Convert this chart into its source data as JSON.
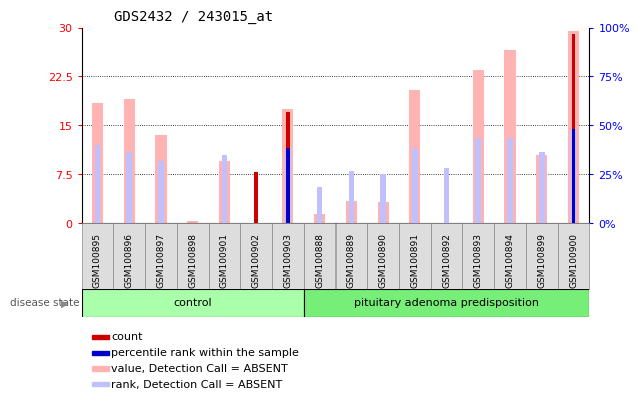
{
  "title": "GDS2432 / 243015_at",
  "samples": [
    "GSM100895",
    "GSM100896",
    "GSM100897",
    "GSM100898",
    "GSM100901",
    "GSM100902",
    "GSM100903",
    "GSM100888",
    "GSM100889",
    "GSM100890",
    "GSM100891",
    "GSM100892",
    "GSM100893",
    "GSM100894",
    "GSM100899",
    "GSM100900"
  ],
  "group_labels": [
    "control",
    "pituitary adenoma predisposition"
  ],
  "group_sizes": [
    7,
    9
  ],
  "value_bars": [
    18.5,
    19.0,
    13.5,
    0.3,
    9.5,
    0.0,
    17.5,
    1.5,
    3.5,
    3.2,
    20.5,
    0.0,
    23.5,
    26.5,
    10.5,
    29.5
  ],
  "rank_bars": [
    12.0,
    11.0,
    9.5,
    0.0,
    10.5,
    0.0,
    11.0,
    5.5,
    8.0,
    7.5,
    11.5,
    8.5,
    13.0,
    13.0,
    11.0,
    14.5
  ],
  "count_bars": [
    0.0,
    0.0,
    0.0,
    0.0,
    0.0,
    7.8,
    17.0,
    0.0,
    0.0,
    0.0,
    0.0,
    0.0,
    0.0,
    0.0,
    0.0,
    29.0
  ],
  "pct_bars": [
    0.0,
    0.0,
    0.0,
    0.0,
    0.0,
    0.0,
    11.5,
    0.0,
    0.0,
    0.0,
    0.0,
    0.0,
    0.0,
    0.0,
    0.0,
    14.5
  ],
  "ylim": [
    0,
    30
  ],
  "yticks": [
    0,
    7.5,
    15,
    22.5,
    30
  ],
  "ytick_labels": [
    "0",
    "7.5",
    "15",
    "22.5",
    "30"
  ],
  "y2tick_labels": [
    "0%",
    "25%",
    "50%",
    "75%",
    "100%"
  ],
  "color_value": "#ffb3b3",
  "color_rank": "#c0c0ff",
  "color_count": "#cc0000",
  "color_pct": "#0000cc",
  "color_group1": "#aaffaa",
  "color_group2": "#77ee77",
  "legend_items": [
    {
      "label": "count",
      "color": "#cc0000"
    },
    {
      "label": "percentile rank within the sample",
      "color": "#0000cc"
    },
    {
      "label": "value, Detection Call = ABSENT",
      "color": "#ffb3b3"
    },
    {
      "label": "rank, Detection Call = ABSENT",
      "color": "#c0c0ff"
    }
  ]
}
